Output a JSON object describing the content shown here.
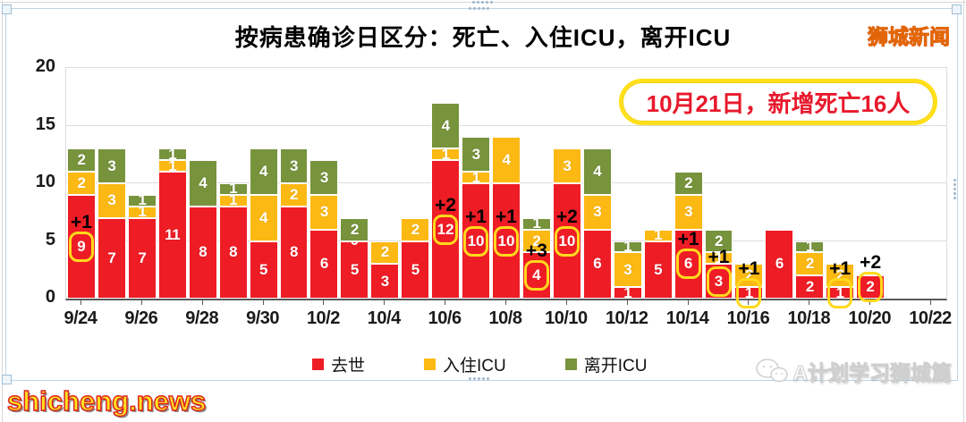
{
  "window": {
    "watermark_topright": "狮城新闻",
    "watermark_bottomleft": "shicheng.news",
    "watermark_bottomright": "A计划学习狮城篇"
  },
  "chart_data": {
    "type": "bar",
    "stacked": true,
    "title": "按病患确诊日区分：死亡、入住ICU，离开ICU",
    "annotation": "10月21日，新增死亡16人",
    "ylim": [
      0,
      20
    ],
    "yticks": [
      0,
      5,
      10,
      15,
      20
    ],
    "grid": true,
    "x_tick_labels": [
      "9/24",
      "9/26",
      "9/28",
      "9/30",
      "10/2",
      "10/4",
      "10/6",
      "10/8",
      "10/10",
      "10/12",
      "10/14",
      "10/16",
      "10/18",
      "10/20",
      "10/22"
    ],
    "dates": [
      "9/24",
      "9/25",
      "9/26",
      "9/27",
      "9/28",
      "9/29",
      "9/30",
      "10/1",
      "10/2",
      "10/3",
      "10/4",
      "10/5",
      "10/6",
      "10/7",
      "10/8",
      "10/9",
      "10/10",
      "10/11",
      "10/12",
      "10/13",
      "10/14",
      "10/15",
      "10/16",
      "10/17",
      "10/18",
      "10/19",
      "10/20"
    ],
    "legend": [
      {
        "label": "去世",
        "color": "#ee1c25"
      },
      {
        "label": "入住ICU",
        "color": "#fdb913"
      },
      {
        "label": "离开ICU",
        "color": "#77933c"
      }
    ],
    "series": [
      {
        "name": "去世",
        "color": "#ee1c25",
        "values": [
          9,
          7,
          7,
          11,
          8,
          8,
          5,
          8,
          6,
          5,
          3,
          5,
          12,
          10,
          10,
          4,
          10,
          6,
          1,
          5,
          6,
          3,
          1,
          6,
          2,
          1,
          2
        ]
      },
      {
        "name": "入住ICU",
        "color": "#fdb913",
        "values": [
          2,
          3,
          1,
          1,
          0,
          1,
          4,
          2,
          3,
          0,
          2,
          2,
          1,
          1,
          4,
          2,
          3,
          3,
          3,
          1,
          3,
          1,
          2,
          0,
          2,
          2,
          0
        ]
      },
      {
        "name": "离开ICU",
        "color": "#77933c",
        "values": [
          2,
          3,
          1,
          1,
          4,
          1,
          4,
          3,
          3,
          2,
          0,
          0,
          4,
          3,
          0,
          1,
          0,
          4,
          1,
          0,
          2,
          2,
          0,
          0,
          1,
          0,
          0
        ]
      }
    ],
    "death_annotations": [
      {
        "index": 0,
        "text": "+1"
      },
      {
        "index": 12,
        "text": "+2"
      },
      {
        "index": 13,
        "text": "+1"
      },
      {
        "index": 14,
        "text": "+1"
      },
      {
        "index": 15,
        "text": "+3"
      },
      {
        "index": 16,
        "text": "+2"
      },
      {
        "index": 20,
        "text": "+1"
      },
      {
        "index": 21,
        "text": "+1"
      },
      {
        "index": 22,
        "text": "+1"
      },
      {
        "index": 25,
        "text": "+1"
      },
      {
        "index": 26,
        "text": "+2"
      }
    ],
    "zero_labels": [
      {
        "index": 9,
        "series": "入住ICU",
        "text": "0"
      }
    ]
  }
}
